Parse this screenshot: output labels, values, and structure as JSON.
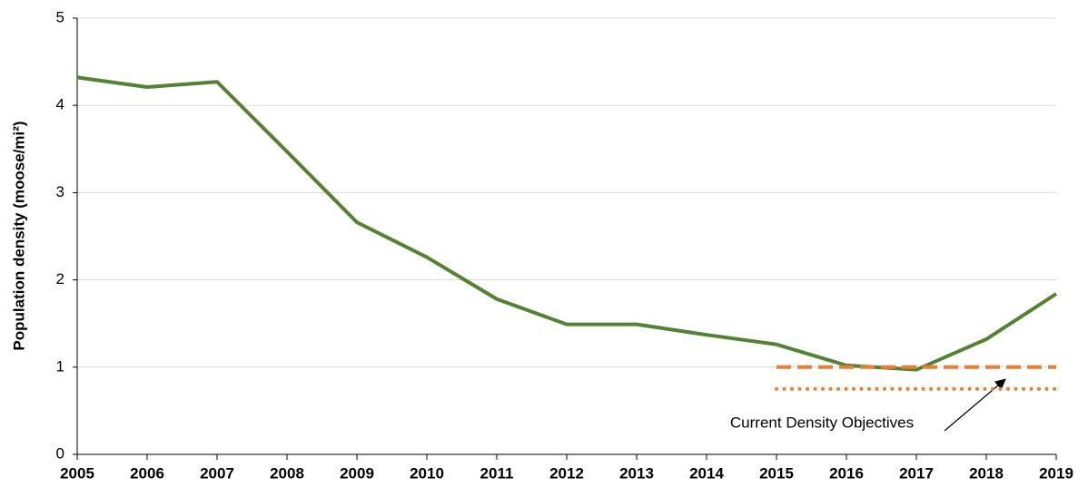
{
  "chart_data": {
    "type": "line",
    "y_label": "Population density (moose/mi²)",
    "x": [
      2005,
      2006,
      2007,
      2008,
      2009,
      2010,
      2011,
      2012,
      2013,
      2014,
      2015,
      2016,
      2017,
      2018,
      2019
    ],
    "values": [
      4.32,
      4.21,
      4.27,
      3.47,
      2.66,
      2.26,
      1.78,
      1.49,
      1.49,
      1.37,
      1.26,
      1.02,
      0.97,
      1.32,
      1.84
    ],
    "color": "#548235",
    "series": [
      {
        "x": [
          2015,
          2019
        ],
        "values": [
          1,
          1
        ],
        "color": "#ed7d31",
        "dash": "dashed"
      },
      {
        "x": [
          2015,
          2019
        ],
        "values": [
          0.75,
          0.75
        ],
        "color": "#ed7d31",
        "dash": "dotted"
      }
    ],
    "annotation": "Current Density Objectives",
    "xlim": [
      2005,
      2019
    ],
    "xticks": [
      2005,
      2006,
      2007,
      2008,
      2009,
      2010,
      2011,
      2012,
      2013,
      2014,
      2015,
      2016,
      2017,
      2018,
      2019
    ],
    "ylim": [
      0,
      5
    ],
    "yticks": [
      0,
      1,
      2,
      3,
      4,
      5
    ],
    "grid": true
  }
}
